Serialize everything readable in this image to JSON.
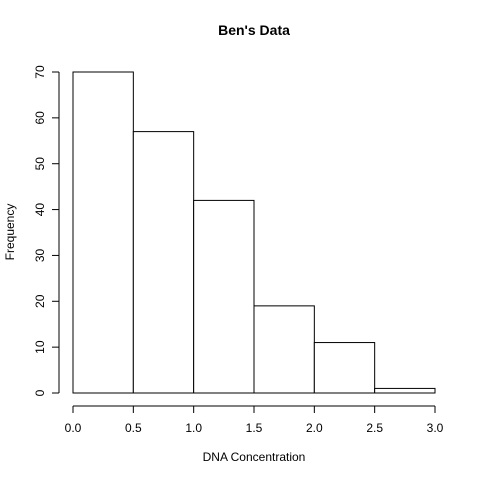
{
  "chart_data": {
    "type": "bar",
    "title": "Ben's Data",
    "xlabel": "DNA Concentration",
    "ylabel": "Frequency",
    "bins": [
      {
        "start": 0.0,
        "end": 0.5,
        "count": 70
      },
      {
        "start": 0.5,
        "end": 1.0,
        "count": 57
      },
      {
        "start": 1.0,
        "end": 1.5,
        "count": 42
      },
      {
        "start": 1.5,
        "end": 2.0,
        "count": 19
      },
      {
        "start": 2.0,
        "end": 2.5,
        "count": 11
      },
      {
        "start": 2.5,
        "end": 3.0,
        "count": 1
      }
    ],
    "xlim": [
      0,
      3
    ],
    "ylim": [
      0,
      70
    ],
    "x_ticks": [
      "0.0",
      "0.5",
      "1.0",
      "1.5",
      "2.0",
      "2.5",
      "3.0"
    ],
    "y_ticks": [
      "0",
      "10",
      "20",
      "30",
      "40",
      "50",
      "60",
      "70"
    ],
    "grid": false,
    "legend": "none"
  }
}
